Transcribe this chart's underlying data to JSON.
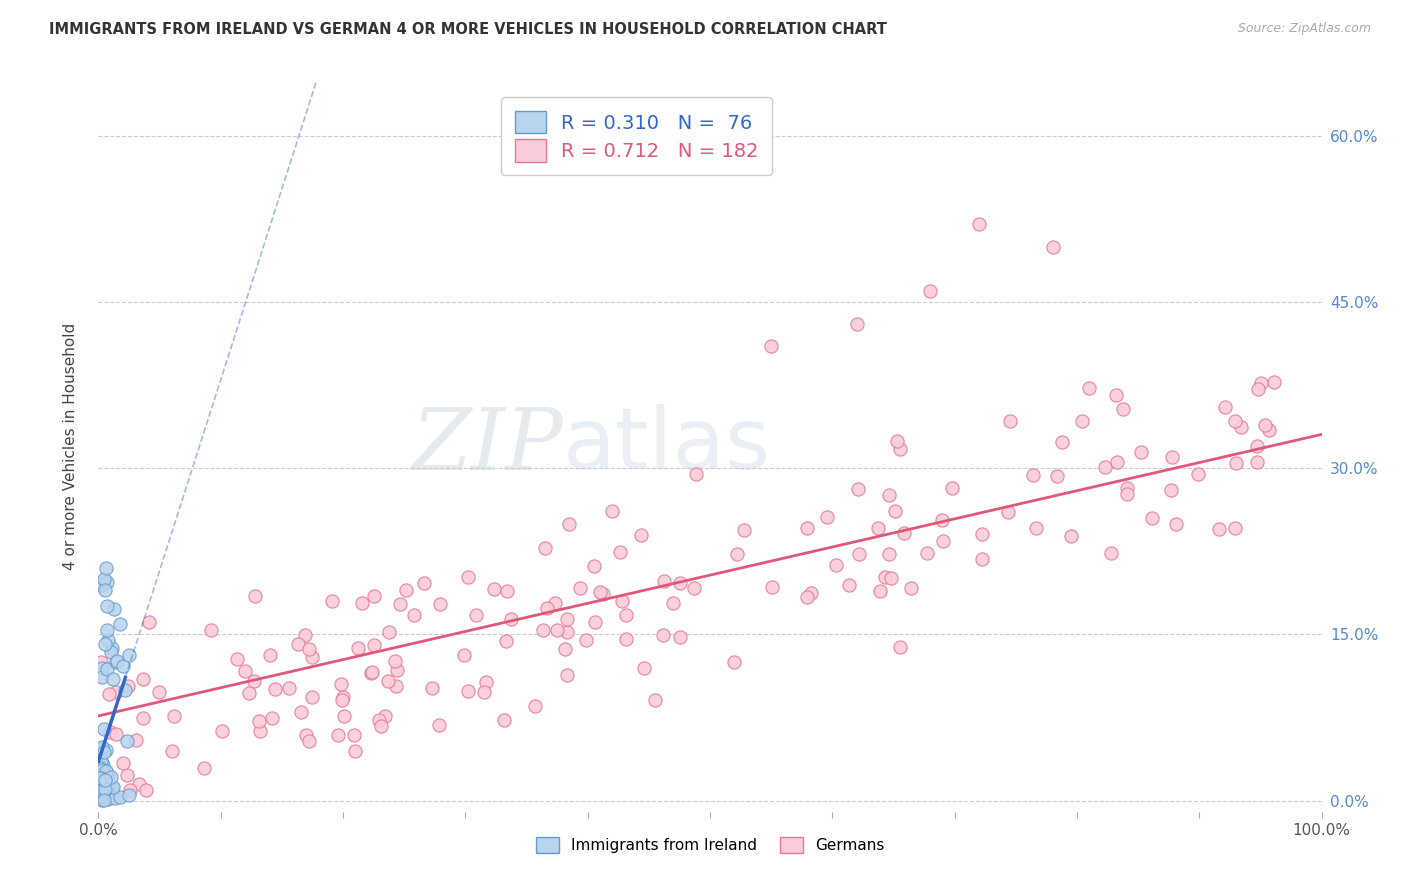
{
  "title": "IMMIGRANTS FROM IRELAND VS GERMAN 4 OR MORE VEHICLES IN HOUSEHOLD CORRELATION CHART",
  "source": "Source: ZipAtlas.com",
  "ylabel": "4 or more Vehicles in Household",
  "xlim": [
    0.0,
    1.0
  ],
  "ylim": [
    -0.01,
    0.65
  ],
  "xticks": [
    0.0,
    0.1,
    0.2,
    0.3,
    0.4,
    0.5,
    0.6,
    0.7,
    0.8,
    0.9,
    1.0
  ],
  "xticklabels": [
    "0.0%",
    "",
    "",
    "",
    "",
    "",
    "",
    "",
    "",
    "",
    "100.0%"
  ],
  "yticks": [
    0.0,
    0.15,
    0.3,
    0.45,
    0.6
  ],
  "yticklabels_right": [
    "0.0%",
    "15.0%",
    "30.0%",
    "45.0%",
    "60.0%"
  ],
  "ireland_fill": "#b8d4ee",
  "ireland_edge": "#6699cc",
  "ireland_R": 0.31,
  "ireland_N": 76,
  "german_fill": "#f8ccd8",
  "german_edge": "#e87898",
  "german_R": 0.712,
  "german_N": 182,
  "legend_label_ireland": "Immigrants from Ireland",
  "legend_label_german": "Germans",
  "watermark_zip": "ZIP",
  "watermark_atlas": "atlas",
  "background_color": "#ffffff",
  "grid_color": "#cccccc",
  "ireland_line_color": "#3366cc",
  "german_line_color": "#e05878",
  "tick_color": "#5588cc",
  "title_color": "#333333",
  "source_color": "#aaaaaa"
}
